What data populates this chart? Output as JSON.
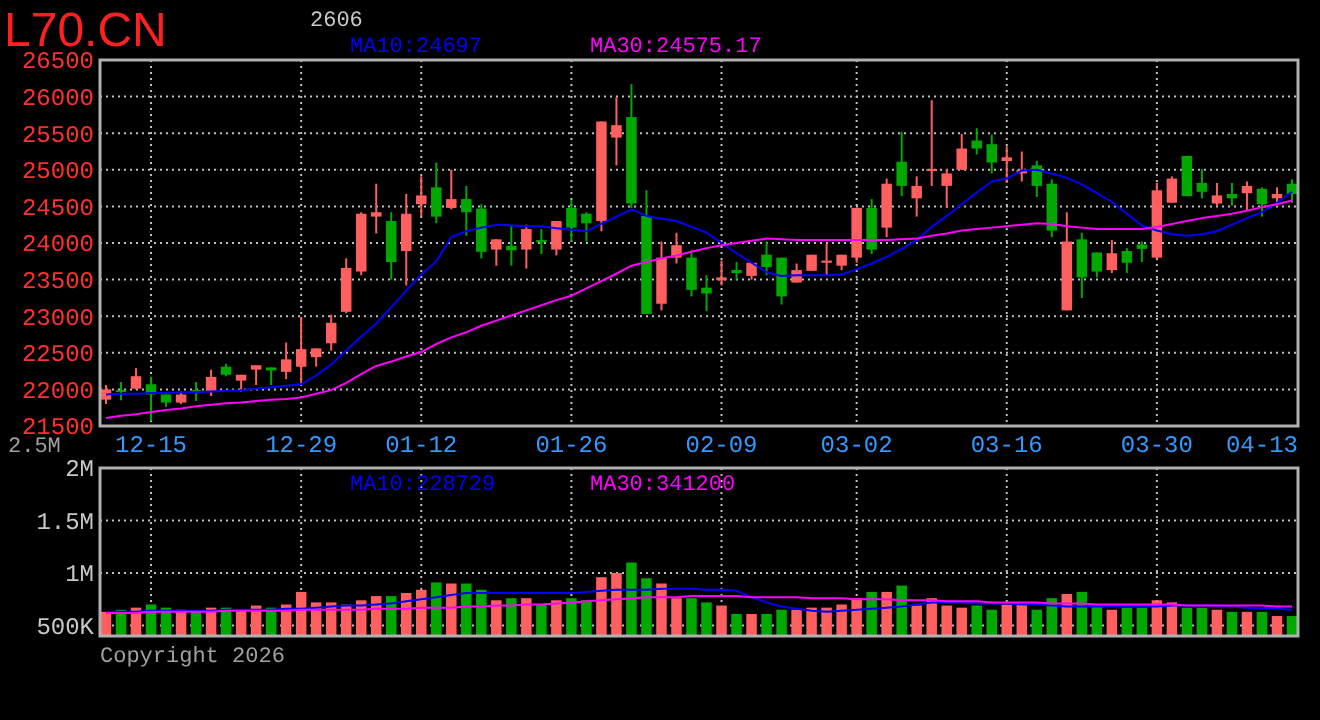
{
  "chart_data": [
    {
      "type": "candlestick",
      "title": "L70.CN",
      "subtitle": "2606",
      "categories": [
        null,
        null,
        null,
        "12-15",
        null,
        null,
        null,
        null,
        null,
        null,
        null,
        null,
        null,
        "12-29",
        null,
        null,
        null,
        null,
        null,
        null,
        null,
        "01-12",
        null,
        null,
        null,
        null,
        null,
        null,
        null,
        null,
        null,
        "01-26",
        null,
        null,
        null,
        null,
        null,
        null,
        null,
        null,
        null,
        "02-09",
        null,
        null,
        null,
        null,
        null,
        null,
        null,
        null,
        "03-02",
        null,
        null,
        null,
        null,
        null,
        null,
        null,
        null,
        null,
        "03-16",
        null,
        null,
        null,
        null,
        null,
        null,
        null,
        null,
        null,
        "03-30",
        null,
        null,
        null,
        null,
        null,
        null,
        "04-13",
        null,
        null
      ],
      "ohlc": [
        [
          21860,
          22060,
          21800,
          22000
        ],
        [
          21990,
          22100,
          21850,
          21970
        ],
        [
          22010,
          22290,
          22000,
          22180
        ],
        [
          22070,
          22170,
          21570,
          21930
        ],
        [
          21930,
          21930,
          21760,
          21820
        ],
        [
          21820,
          21970,
          21800,
          21930
        ],
        [
          21990,
          22100,
          21840,
          21950
        ],
        [
          21980,
          22270,
          21910,
          22170
        ],
        [
          22310,
          22350,
          22180,
          22200
        ],
        [
          22120,
          22200,
          21970,
          22200
        ],
        [
          22270,
          22330,
          22060,
          22330
        ],
        [
          22300,
          22300,
          22060,
          22260
        ],
        [
          22240,
          22640,
          22140,
          22410
        ],
        [
          22310,
          22990,
          22080,
          22550
        ],
        [
          22440,
          22560,
          22310,
          22560
        ],
        [
          22630,
          23020,
          22530,
          22910
        ],
        [
          23060,
          23790,
          23040,
          23660
        ],
        [
          23610,
          24420,
          23560,
          24400
        ],
        [
          24360,
          24810,
          24130,
          24420
        ],
        [
          24300,
          24420,
          23500,
          23740
        ],
        [
          23890,
          24670,
          23420,
          24400
        ],
        [
          24530,
          24910,
          24360,
          24650
        ],
        [
          24760,
          25100,
          24270,
          24360
        ],
        [
          24480,
          25000,
          24460,
          24600
        ],
        [
          24600,
          24780,
          24100,
          24420
        ],
        [
          24470,
          24530,
          23790,
          23880
        ],
        [
          23910,
          24050,
          23690,
          24050
        ],
        [
          23960,
          24240,
          23690,
          23900
        ],
        [
          23910,
          24250,
          23650,
          24190
        ],
        [
          24040,
          24190,
          23850,
          24010
        ],
        [
          23910,
          24300,
          23830,
          24300
        ],
        [
          24480,
          24590,
          24020,
          24210
        ],
        [
          24400,
          24420,
          24020,
          24270
        ],
        [
          24300,
          25660,
          24160,
          25660
        ],
        [
          25440,
          25990,
          25060,
          25610
        ],
        [
          25720,
          26170,
          24480,
          24540
        ],
        [
          24370,
          24720,
          23030,
          23030
        ],
        [
          23170,
          24020,
          23080,
          23800
        ],
        [
          23800,
          24140,
          23720,
          23970
        ],
        [
          23800,
          23900,
          23270,
          23360
        ],
        [
          23390,
          23560,
          23070,
          23310
        ],
        [
          23490,
          23760,
          23420,
          23530
        ],
        [
          23630,
          23740,
          23500,
          23590
        ],
        [
          23550,
          23730,
          23500,
          23730
        ],
        [
          23840,
          24020,
          23560,
          23670
        ],
        [
          23800,
          23800,
          23160,
          23270
        ],
        [
          23460,
          23720,
          23460,
          23630
        ],
        [
          23620,
          23840,
          23620,
          23840
        ],
        [
          23730,
          23990,
          23560,
          23760
        ],
        [
          23690,
          23840,
          23630,
          23840
        ],
        [
          23800,
          24480,
          23730,
          24480
        ],
        [
          24480,
          24600,
          23850,
          23910
        ],
        [
          24210,
          24880,
          24080,
          24810
        ],
        [
          25110,
          25520,
          24640,
          24780
        ],
        [
          24610,
          24910,
          24360,
          24780
        ],
        [
          25000,
          25950,
          24780,
          25010
        ],
        [
          24780,
          25010,
          24480,
          24950
        ],
        [
          25000,
          25490,
          25000,
          25290
        ],
        [
          25400,
          25570,
          25210,
          25290
        ],
        [
          25350,
          25480,
          24950,
          25100
        ],
        [
          25120,
          25320,
          24820,
          25170
        ],
        [
          24950,
          25250,
          24840,
          25000
        ],
        [
          25060,
          25120,
          24630,
          24780
        ],
        [
          24810,
          24870,
          24080,
          24170
        ],
        [
          23080,
          24420,
          23080,
          24020
        ],
        [
          24050,
          24140,
          23250,
          23530
        ],
        [
          23870,
          23870,
          23530,
          23610
        ],
        [
          23630,
          24040,
          23590,
          23860
        ],
        [
          23890,
          23930,
          23590,
          23730
        ],
        [
          23980,
          24020,
          23740,
          23920
        ],
        [
          23800,
          24820,
          23790,
          24720
        ],
        [
          24550,
          24910,
          24550,
          24880
        ],
        [
          25190,
          25190,
          24640,
          24640
        ],
        [
          24820,
          25010,
          24610,
          24700
        ],
        [
          24540,
          24820,
          24510,
          24650
        ],
        [
          24670,
          24820,
          24510,
          24610
        ],
        [
          24680,
          24840,
          24440,
          24780
        ],
        [
          24740,
          24760,
          24360,
          24530
        ],
        [
          24610,
          24760,
          24530,
          24670
        ],
        [
          24810,
          24870,
          24550,
          24670
        ]
      ],
      "colors": [
        "#ff5f5f",
        "#00a800",
        "#ff5f5f",
        "#00a800",
        "#00a800",
        "#ff5f5f",
        "#00a800",
        "#ff5f5f",
        "#00a800",
        "#ff5f5f",
        "#ff5f5f",
        "#00a800",
        "#ff5f5f",
        "#ff5f5f",
        "#ff5f5f",
        "#ff5f5f",
        "#ff5f5f",
        "#ff5f5f",
        "#ff5f5f",
        "#00a800",
        "#ff5f5f",
        "#ff5f5f",
        "#00a800",
        "#ff5f5f",
        "#00a800",
        "#00a800",
        "#ff5f5f",
        "#00a800",
        "#ff5f5f",
        "#00a800",
        "#ff5f5f",
        "#00a800",
        "#00a800",
        "#ff5f5f",
        "#ff5f5f",
        "#00a800",
        "#00a800",
        "#ff5f5f",
        "#ff5f5f",
        "#00a800",
        "#00a800",
        "#ff5f5f",
        "#00a800",
        "#ff5f5f",
        "#00a800",
        "#00a800",
        "#ff5f5f",
        "#ff5f5f",
        "#ff5f5f",
        "#ff5f5f",
        "#ff5f5f",
        "#00a800",
        "#ff5f5f",
        "#00a800",
        "#ff5f5f",
        "#ff5f5f",
        "#ff5f5f",
        "#ff5f5f",
        "#00a800",
        "#00a800",
        "#ff5f5f",
        "#ff5f5f",
        "#00a800",
        "#00a800",
        "#ff5f5f",
        "#00a800",
        "#00a800",
        "#ff5f5f",
        "#00a800",
        "#00a800",
        "#ff5f5f",
        "#ff5f5f",
        "#00a800",
        "#00a800",
        "#ff5f5f",
        "#00a800",
        "#ff5f5f",
        "#00a800",
        "#ff5f5f",
        "#00a800"
      ],
      "series": [
        {
          "type": "line",
          "name": "MA10:24697",
          "color": "#0000ff",
          "values": [
            21930,
            21940,
            21940,
            21950,
            21950,
            21960,
            21960,
            21970,
            21980,
            21990,
            22010,
            22030,
            22050,
            22070,
            22190,
            22340,
            22530,
            22720,
            22900,
            23120,
            23350,
            23570,
            23750,
            24080,
            24160,
            24210,
            24250,
            24240,
            24230,
            24230,
            24200,
            24180,
            24160,
            24260,
            24360,
            24460,
            24370,
            24330,
            24300,
            24220,
            24140,
            24000,
            23860,
            23730,
            23600,
            23550,
            23560,
            23560,
            23560,
            23570,
            23640,
            23720,
            23810,
            23920,
            24040,
            24220,
            24370,
            24530,
            24690,
            24840,
            24880,
            24990,
            25000,
            24950,
            24890,
            24800,
            24680,
            24560,
            24400,
            24240,
            24170,
            24120,
            24100,
            24120,
            24160,
            24250,
            24340,
            24420,
            24550,
            24700
          ]
        },
        {
          "type": "line",
          "name": "MA30:24575.17",
          "color": "#ff00ff",
          "values": [
            21610,
            21640,
            21660,
            21690,
            21720,
            21740,
            21770,
            21790,
            21810,
            21820,
            21840,
            21860,
            21870,
            21890,
            21940,
            21990,
            22090,
            22210,
            22320,
            22380,
            22450,
            22510,
            22620,
            22710,
            22780,
            22870,
            22940,
            23010,
            23080,
            23150,
            23220,
            23280,
            23380,
            23480,
            23580,
            23690,
            23740,
            23790,
            23830,
            23880,
            23930,
            23970,
            24000,
            24030,
            24060,
            24050,
            24040,
            24040,
            24040,
            24040,
            24040,
            24040,
            24040,
            24050,
            24060,
            24100,
            24130,
            24170,
            24190,
            24210,
            24230,
            24250,
            24270,
            24260,
            24230,
            24210,
            24190,
            24190,
            24190,
            24190,
            24220,
            24260,
            24300,
            24340,
            24370,
            24400,
            24440,
            24490,
            24530,
            24580
          ]
        }
      ],
      "ylim": [
        21500,
        26500
      ],
      "yticks": [
        21500,
        22000,
        22500,
        23000,
        23500,
        24000,
        24500,
        25000,
        25500,
        26000,
        26500
      ],
      "grid": true,
      "legend": "top"
    },
    {
      "type": "bar",
      "categories": [
        null,
        null,
        null,
        null,
        null,
        null,
        null,
        null,
        null,
        null,
        null,
        null,
        null,
        null,
        null,
        null,
        null,
        null,
        null,
        null,
        null,
        null,
        null,
        null,
        null,
        null,
        null,
        null,
        null,
        null,
        null,
        null,
        null,
        null,
        null,
        null,
        null,
        null,
        null,
        null,
        null,
        null,
        null,
        null,
        null,
        null,
        null,
        null,
        null,
        null,
        null,
        null,
        null,
        null,
        null,
        null,
        null,
        null,
        null,
        null,
        null,
        null,
        null,
        null,
        null,
        null,
        null,
        null,
        null,
        null,
        null,
        null,
        null,
        null,
        null,
        null,
        null,
        null,
        null,
        null
      ],
      "values": [
        630000,
        650000,
        670000,
        700000,
        670000,
        650000,
        630000,
        670000,
        670000,
        650000,
        690000,
        670000,
        700000,
        820000,
        720000,
        720000,
        700000,
        740000,
        780000,
        780000,
        810000,
        840000,
        910000,
        900000,
        900000,
        840000,
        740000,
        760000,
        760000,
        700000,
        740000,
        760000,
        740000,
        960000,
        1000000,
        1100000,
        950000,
        900000,
        760000,
        760000,
        720000,
        690000,
        610000,
        610000,
        610000,
        650000,
        650000,
        670000,
        670000,
        700000,
        760000,
        820000,
        820000,
        880000,
        690000,
        760000,
        690000,
        670000,
        690000,
        650000,
        700000,
        700000,
        650000,
        760000,
        800000,
        820000,
        690000,
        650000,
        670000,
        670000,
        740000,
        720000,
        670000,
        670000,
        650000,
        630000,
        630000,
        630000,
        590000,
        590000
      ],
      "colors": [
        "#ff5f5f",
        "#00a800",
        "#ff5f5f",
        "#00a800",
        "#00a800",
        "#ff5f5f",
        "#00a800",
        "#ff5f5f",
        "#00a800",
        "#ff5f5f",
        "#ff5f5f",
        "#00a800",
        "#ff5f5f",
        "#ff5f5f",
        "#ff5f5f",
        "#ff5f5f",
        "#ff5f5f",
        "#ff5f5f",
        "#ff5f5f",
        "#00a800",
        "#ff5f5f",
        "#ff5f5f",
        "#00a800",
        "#ff5f5f",
        "#00a800",
        "#00a800",
        "#ff5f5f",
        "#00a800",
        "#ff5f5f",
        "#00a800",
        "#ff5f5f",
        "#00a800",
        "#00a800",
        "#ff5f5f",
        "#ff5f5f",
        "#00a800",
        "#00a800",
        "#ff5f5f",
        "#ff5f5f",
        "#00a800",
        "#00a800",
        "#ff5f5f",
        "#00a800",
        "#ff5f5f",
        "#00a800",
        "#00a800",
        "#ff5f5f",
        "#ff5f5f",
        "#ff5f5f",
        "#ff5f5f",
        "#ff5f5f",
        "#00a800",
        "#ff5f5f",
        "#00a800",
        "#ff5f5f",
        "#ff5f5f",
        "#ff5f5f",
        "#ff5f5f",
        "#00a800",
        "#00a800",
        "#ff5f5f",
        "#ff5f5f",
        "#00a800",
        "#00a800",
        "#ff5f5f",
        "#00a800",
        "#00a800",
        "#ff5f5f",
        "#00a800",
        "#00a800",
        "#ff5f5f",
        "#ff5f5f",
        "#00a800",
        "#00a800",
        "#ff5f5f",
        "#00a800",
        "#ff5f5f",
        "#00a800",
        "#ff5f5f",
        "#00a800"
      ],
      "series": [
        {
          "type": "line",
          "name": "MA10:228729",
          "color": "#0000ff",
          "values": [
            630000,
            630000,
            630000,
            640000,
            640000,
            640000,
            640000,
            640000,
            650000,
            650000,
            650000,
            650000,
            660000,
            660000,
            670000,
            680000,
            690000,
            690000,
            700000,
            710000,
            730000,
            750000,
            770000,
            790000,
            810000,
            810000,
            810000,
            810000,
            810000,
            810000,
            810000,
            810000,
            820000,
            830000,
            840000,
            840000,
            840000,
            850000,
            850000,
            850000,
            840000,
            840000,
            830000,
            770000,
            720000,
            680000,
            660000,
            640000,
            630000,
            640000,
            650000,
            660000,
            670000,
            680000,
            700000,
            720000,
            720000,
            720000,
            710000,
            710000,
            710000,
            700000,
            700000,
            690000,
            680000,
            680000,
            680000,
            680000,
            680000,
            680000,
            680000,
            690000,
            690000,
            690000,
            690000,
            680000,
            670000,
            660000,
            660000,
            650000
          ]
        },
        {
          "type": "line",
          "name": "MA30:341200",
          "color": "#ff00ff",
          "values": [
            620000,
            620000,
            620000,
            630000,
            630000,
            630000,
            630000,
            630000,
            640000,
            640000,
            640000,
            640000,
            640000,
            650000,
            650000,
            650000,
            650000,
            650000,
            660000,
            660000,
            660000,
            670000,
            670000,
            670000,
            680000,
            680000,
            690000,
            690000,
            700000,
            700000,
            710000,
            720000,
            730000,
            740000,
            750000,
            760000,
            770000,
            770000,
            770000,
            780000,
            780000,
            780000,
            780000,
            770000,
            770000,
            770000,
            770000,
            760000,
            760000,
            760000,
            750000,
            750000,
            750000,
            740000,
            740000,
            740000,
            730000,
            730000,
            730000,
            720000,
            720000,
            720000,
            720000,
            710000,
            710000,
            710000,
            700000,
            700000,
            700000,
            700000,
            700000,
            700000,
            690000,
            690000,
            690000,
            690000,
            690000,
            690000,
            680000,
            680000
          ]
        }
      ],
      "ylim": [
        400000,
        2000000
      ],
      "yticks": [
        {
          "value": 500000,
          "label": "500K"
        },
        {
          "value": 1000000,
          "label": "1M"
        },
        {
          "value": 1500000,
          "label": "1.5M"
        },
        {
          "value": 2000000,
          "label": "2M"
        }
      ],
      "grid": true,
      "legend": "top",
      "annotations": [
        "2.5M",
        "Copyright 2026"
      ]
    }
  ]
}
